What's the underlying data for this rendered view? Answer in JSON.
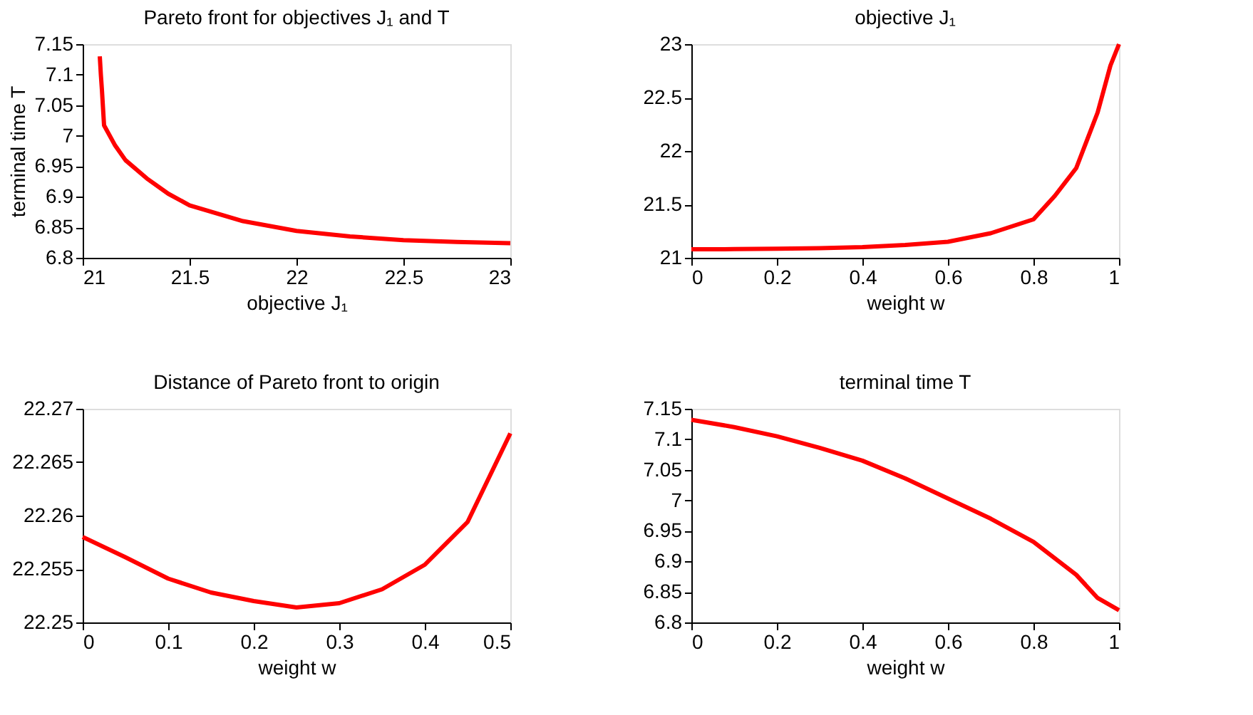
{
  "chart_data": [
    {
      "type": "line",
      "title": "Pareto front for objectives  J₁  and  T",
      "xlabel": "objective  J₁",
      "ylabel": "terminal time  T",
      "color": "#ff0000",
      "x": [
        21.08,
        21.085,
        21.09,
        21.1,
        21.15,
        21.2,
        21.3,
        21.4,
        21.5,
        21.75,
        22,
        22.25,
        22.5,
        22.75,
        23
      ],
      "values": [
        7.13,
        7.1,
        7.075,
        7.017,
        6.985,
        6.96,
        6.93,
        6.905,
        6.886,
        6.86,
        6.844,
        6.835,
        6.829,
        6.826,
        6.824
      ],
      "xlim": [
        21,
        23
      ],
      "xticks": [
        21,
        21.5,
        22,
        22.5,
        23
      ],
      "ylim": [
        6.8,
        7.15
      ],
      "yticks": [
        6.8,
        6.85,
        6.9,
        6.95,
        7,
        7.05,
        7.1,
        7.15
      ]
    },
    {
      "type": "line",
      "title": "objective  J₁",
      "xlabel": "weight  w",
      "color": "#ff0000",
      "x": [
        0,
        0.1,
        0.2,
        0.3,
        0.4,
        0.5,
        0.6,
        0.7,
        0.8,
        0.85,
        0.9,
        0.95,
        0.98,
        1
      ],
      "values": [
        21.08,
        21.081,
        21.085,
        21.09,
        21.1,
        21.12,
        21.15,
        21.23,
        21.36,
        21.58,
        21.84,
        22.36,
        22.8,
        23
      ],
      "xlim": [
        0,
        1
      ],
      "xticks": [
        0,
        0.2,
        0.4,
        0.6,
        0.8,
        1
      ],
      "ylim": [
        21,
        23
      ],
      "yticks": [
        21,
        21.5,
        22,
        22.5,
        23
      ]
    },
    {
      "type": "line",
      "title": "Distance of Pareto front to origin",
      "xlabel": "weight  w",
      "color": "#ff0000",
      "x": [
        0,
        0.05,
        0.1,
        0.15,
        0.2,
        0.25,
        0.3,
        0.35,
        0.4,
        0.45,
        0.5
      ],
      "values": [
        22.258,
        22.2561,
        22.2541,
        22.2528,
        22.252,
        22.2514,
        22.2518,
        22.2531,
        22.2554,
        22.2594,
        22.2677
      ],
      "xlim": [
        0,
        0.5
      ],
      "xticks": [
        0,
        0.1,
        0.2,
        0.3,
        0.4,
        0.5
      ],
      "ylim": [
        22.25,
        22.27
      ],
      "yticks": [
        22.25,
        22.255,
        22.26,
        22.265,
        22.27
      ]
    },
    {
      "type": "line",
      "title": "terminal time  T",
      "xlabel": "weight  w",
      "color": "#ff0000",
      "x": [
        0,
        0.1,
        0.2,
        0.3,
        0.4,
        0.5,
        0.6,
        0.7,
        0.8,
        0.9,
        0.95,
        1
      ],
      "values": [
        7.132,
        7.12,
        7.105,
        7.086,
        7.065,
        7.036,
        7.003,
        6.97,
        6.932,
        6.878,
        6.84,
        6.82
      ],
      "xlim": [
        0,
        1
      ],
      "xticks": [
        0,
        0.2,
        0.4,
        0.6,
        0.8,
        1
      ],
      "ylim": [
        6.8,
        7.15
      ],
      "yticks": [
        6.8,
        6.85,
        6.9,
        6.95,
        7,
        7.05,
        7.1,
        7.15
      ]
    }
  ]
}
